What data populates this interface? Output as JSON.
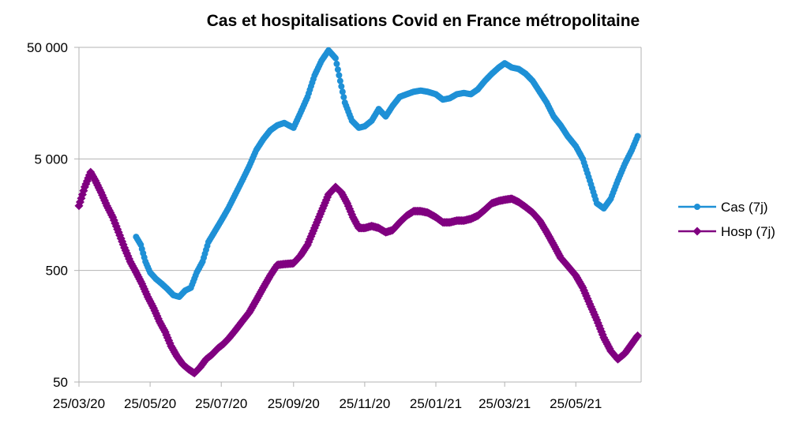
{
  "chart_data": {
    "type": "line",
    "title": "Cas et hospitalisations Covid en France métropolitaine",
    "xlabel": "",
    "ylabel": "",
    "y_scale": "log",
    "ylim": [
      50,
      50000
    ],
    "y_ticks": [
      {
        "value": 50,
        "label": "50"
      },
      {
        "value": 500,
        "label": "500"
      },
      {
        "value": 5000,
        "label": "5 000"
      },
      {
        "value": 50000,
        "label": "50 000"
      }
    ],
    "x_range": [
      "2020-03-25",
      "2021-07-20"
    ],
    "x_ticks": [
      {
        "date": "2020-03-25",
        "label": "25/03/20"
      },
      {
        "date": "2020-05-25",
        "label": "25/05/20"
      },
      {
        "date": "2020-07-25",
        "label": "25/07/20"
      },
      {
        "date": "2020-09-25",
        "label": "25/09/20"
      },
      {
        "date": "2020-11-25",
        "label": "25/11/20"
      },
      {
        "date": "2021-01-25",
        "label": "25/01/21"
      },
      {
        "date": "2021-03-25",
        "label": "25/03/21"
      },
      {
        "date": "2021-05-25",
        "label": "25/05/21"
      }
    ],
    "grid": "horizontal",
    "legend_position": "right",
    "series": [
      {
        "name": "Cas (7j)",
        "color": "#1e90d6",
        "marker": "circle",
        "x": [
          "2020-05-13",
          "2020-05-17",
          "2020-05-21",
          "2020-05-25",
          "2020-05-30",
          "2020-06-04",
          "2020-06-09",
          "2020-06-14",
          "2020-06-19",
          "2020-06-24",
          "2020-06-29",
          "2020-07-04",
          "2020-07-09",
          "2020-07-14",
          "2020-07-19",
          "2020-07-25",
          "2020-07-31",
          "2020-08-06",
          "2020-08-12",
          "2020-08-18",
          "2020-08-24",
          "2020-08-30",
          "2020-09-05",
          "2020-09-11",
          "2020-09-17",
          "2020-09-25",
          "2020-10-01",
          "2020-10-07",
          "2020-10-13",
          "2020-10-19",
          "2020-10-25",
          "2020-10-31",
          "2020-11-04",
          "2020-11-08",
          "2020-11-14",
          "2020-11-20",
          "2020-11-25",
          "2020-12-01",
          "2020-12-07",
          "2020-12-13",
          "2020-12-19",
          "2020-12-25",
          "2020-12-31",
          "2021-01-06",
          "2021-01-12",
          "2021-01-18",
          "2021-01-25",
          "2021-01-31",
          "2021-02-06",
          "2021-02-12",
          "2021-02-18",
          "2021-02-24",
          "2021-03-02",
          "2021-03-08",
          "2021-03-14",
          "2021-03-20",
          "2021-03-25",
          "2021-03-31",
          "2021-04-06",
          "2021-04-12",
          "2021-04-18",
          "2021-04-24",
          "2021-04-30",
          "2021-05-06",
          "2021-05-12",
          "2021-05-18",
          "2021-05-25",
          "2021-05-31",
          "2021-06-06",
          "2021-06-12",
          "2021-06-18",
          "2021-06-24",
          "2021-06-30",
          "2021-07-06",
          "2021-07-12",
          "2021-07-17"
        ],
        "y": [
          1000,
          850,
          600,
          480,
          420,
          380,
          340,
          300,
          290,
          330,
          350,
          480,
          600,
          900,
          1100,
          1400,
          1800,
          2400,
          3200,
          4300,
          6000,
          7500,
          9000,
          10000,
          10500,
          9500,
          13000,
          18000,
          28000,
          38000,
          47000,
          40000,
          25000,
          16000,
          11000,
          9500,
          9800,
          11000,
          14000,
          12000,
          15000,
          18000,
          19000,
          20000,
          20500,
          20000,
          19000,
          17000,
          17500,
          19000,
          19500,
          19000,
          21000,
          25000,
          29000,
          33000,
          36000,
          33000,
          32000,
          29000,
          25000,
          20000,
          16000,
          12000,
          10000,
          8000,
          6500,
          5000,
          3200,
          2000,
          1800,
          2200,
          3200,
          4500,
          6000,
          8000
        ]
      },
      {
        "name": "Hosp (7j)",
        "color": "#800080",
        "marker": "diamond",
        "x": [
          "2020-03-25",
          "2020-03-30",
          "2020-04-04",
          "2020-04-08",
          "2020-04-13",
          "2020-04-18",
          "2020-04-23",
          "2020-04-28",
          "2020-05-03",
          "2020-05-08",
          "2020-05-13",
          "2020-05-18",
          "2020-05-23",
          "2020-05-28",
          "2020-06-02",
          "2020-06-07",
          "2020-06-12",
          "2020-06-17",
          "2020-06-22",
          "2020-06-27",
          "2020-07-02",
          "2020-07-07",
          "2020-07-12",
          "2020-07-17",
          "2020-07-22",
          "2020-07-27",
          "2020-08-01",
          "2020-08-06",
          "2020-08-12",
          "2020-08-18",
          "2020-08-24",
          "2020-08-30",
          "2020-09-05",
          "2020-09-11",
          "2020-09-17",
          "2020-09-25",
          "2020-10-01",
          "2020-10-07",
          "2020-10-13",
          "2020-10-19",
          "2020-10-25",
          "2020-10-31",
          "2020-11-05",
          "2020-11-10",
          "2020-11-15",
          "2020-11-20",
          "2020-11-25",
          "2020-12-01",
          "2020-12-07",
          "2020-12-13",
          "2020-12-19",
          "2020-12-25",
          "2020-12-31",
          "2021-01-06",
          "2021-01-12",
          "2021-01-18",
          "2021-01-25",
          "2021-01-31",
          "2021-02-06",
          "2021-02-12",
          "2021-02-18",
          "2021-02-24",
          "2021-03-02",
          "2021-03-08",
          "2021-03-14",
          "2021-03-20",
          "2021-03-25",
          "2021-03-31",
          "2021-04-06",
          "2021-04-12",
          "2021-04-18",
          "2021-04-24",
          "2021-04-30",
          "2021-05-06",
          "2021-05-12",
          "2021-05-18",
          "2021-05-25",
          "2021-05-31",
          "2021-06-06",
          "2021-06-12",
          "2021-06-18",
          "2021-06-24",
          "2021-06-30",
          "2021-07-06",
          "2021-07-12",
          "2021-07-17"
        ],
        "y": [
          1900,
          2800,
          3800,
          3200,
          2500,
          1900,
          1500,
          1100,
          800,
          600,
          480,
          380,
          290,
          230,
          175,
          140,
          105,
          85,
          72,
          65,
          60,
          68,
          80,
          88,
          100,
          110,
          125,
          145,
          175,
          210,
          270,
          350,
          450,
          560,
          570,
          580,
          680,
          850,
          1200,
          1700,
          2400,
          2800,
          2500,
          2000,
          1500,
          1200,
          1200,
          1250,
          1200,
          1100,
          1150,
          1350,
          1550,
          1700,
          1700,
          1650,
          1500,
          1350,
          1350,
          1400,
          1400,
          1450,
          1550,
          1750,
          2000,
          2100,
          2150,
          2200,
          2050,
          1850,
          1650,
          1400,
          1100,
          850,
          650,
          550,
          450,
          350,
          250,
          180,
          125,
          95,
          80,
          90,
          110,
          130
        ]
      }
    ]
  }
}
